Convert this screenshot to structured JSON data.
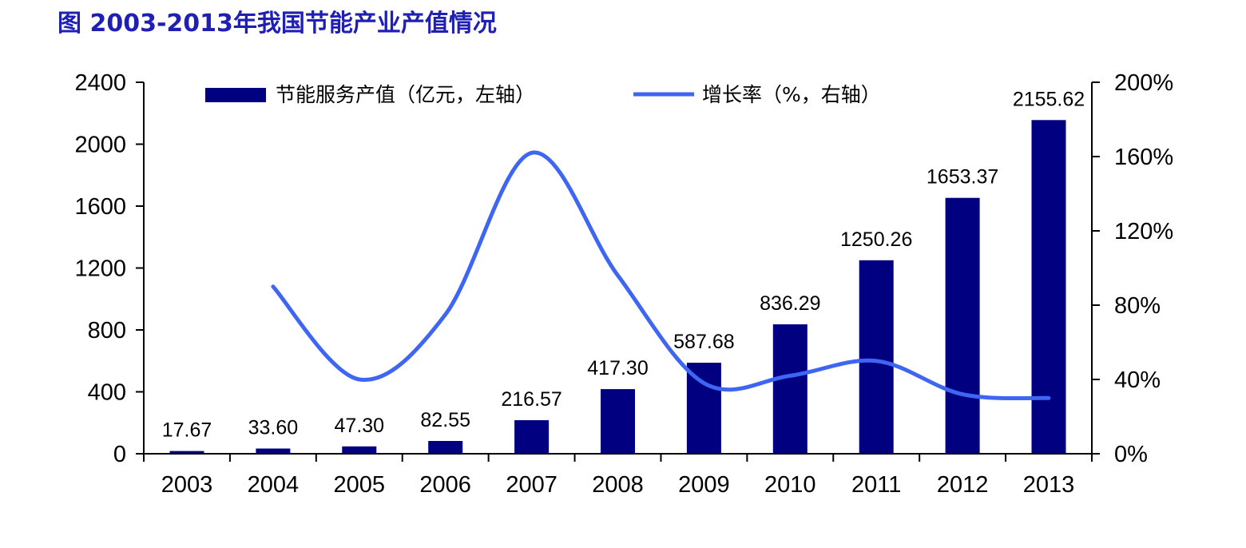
{
  "title": "图 2003-2013年我国节能产业产值情况",
  "colors": {
    "bar": "#000080",
    "line": "#3f66f2",
    "title": "#1f1fb4"
  },
  "chart_data": {
    "type": "bar",
    "categories": [
      "2003",
      "2004",
      "2005",
      "2006",
      "2007",
      "2008",
      "2009",
      "2010",
      "2011",
      "2012",
      "2013"
    ],
    "series": [
      {
        "name": "节能服务产值（亿元，左轴）",
        "type": "bar",
        "axis": "left",
        "values": [
          17.67,
          33.6,
          47.3,
          82.55,
          216.57,
          417.3,
          587.68,
          836.29,
          1250.26,
          1653.37,
          2155.62
        ],
        "labels": [
          "17.67",
          "33.60",
          "47.30",
          "82.55",
          "216.57",
          "417.30",
          "587.68",
          "836.29",
          "1250.26",
          "1653.37",
          "2155.62"
        ]
      },
      {
        "name": "增长率（%，右轴）",
        "type": "line",
        "axis": "right",
        "smooth": true,
        "values": [
          null,
          90,
          40,
          75,
          162,
          96,
          38,
          42,
          50,
          32,
          30
        ]
      }
    ],
    "y_left": {
      "range": [
        0,
        2400
      ],
      "ticks": [
        "0",
        "400",
        "800",
        "1200",
        "1600",
        "2000",
        "2400"
      ]
    },
    "y_right": {
      "range": [
        0,
        200
      ],
      "ticks": [
        "0%",
        "40%",
        "80%",
        "120%",
        "160%",
        "200%"
      ]
    },
    "grid": false,
    "legend": "top"
  }
}
